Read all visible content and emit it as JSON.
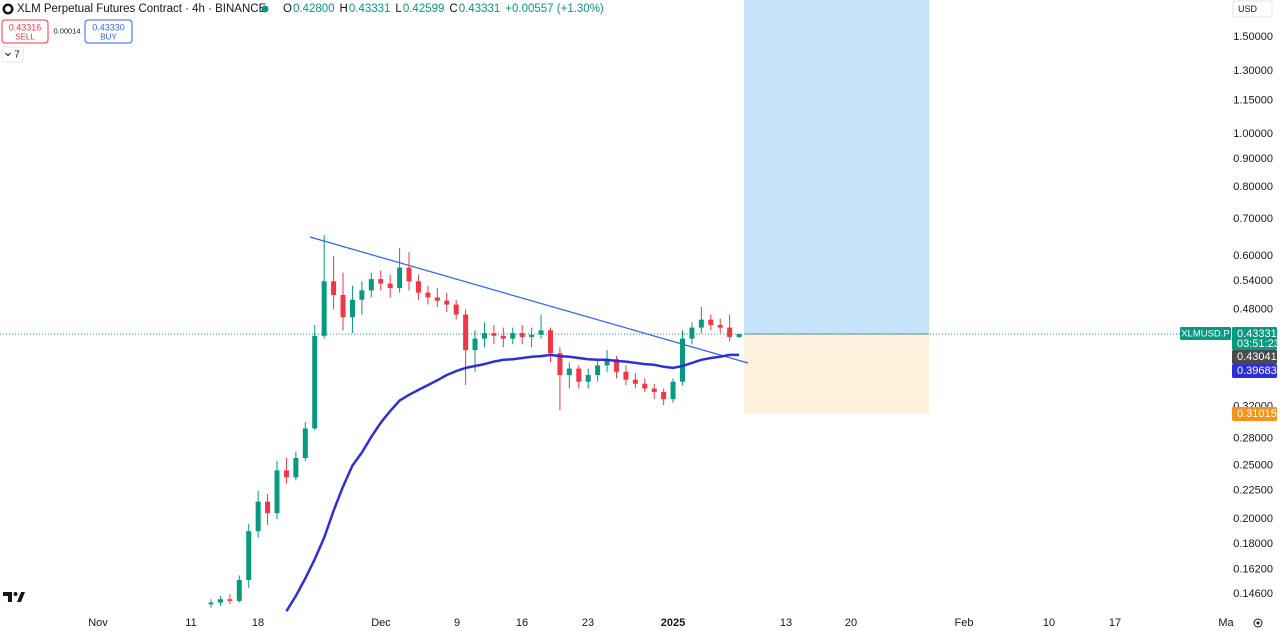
{
  "header": {
    "title": "XLM Perpetual Futures Contract · 4h · BINANCE",
    "ohlc": [
      {
        "key": "O",
        "value": "0.42800"
      },
      {
        "key": "H",
        "value": "0.43331"
      },
      {
        "key": "L",
        "value": "0.42599"
      },
      {
        "key": "C",
        "value": "0.43331"
      }
    ],
    "change": "+0.00557 (+1.30%)"
  },
  "trade": {
    "sell_price": "0.43316",
    "sell": "SELL",
    "spread": "0.00014",
    "buy_price": "0.43330",
    "buy": "BUY"
  },
  "indicators_count": "7",
  "currency": "USD",
  "chart_data": {
    "type": "candlestick",
    "log_scale": true,
    "up_color": "#089981",
    "down_color": "#f23645",
    "ylim": [
      0.135,
      1.75
    ],
    "yticks": [
      {
        "value": 1.5,
        "label": "1.50000"
      },
      {
        "value": 1.3,
        "label": "1.30000"
      },
      {
        "value": 1.15,
        "label": "1.15000"
      },
      {
        "value": 1.0,
        "label": "1.00000"
      },
      {
        "value": 0.9,
        "label": "0.90000"
      },
      {
        "value": 0.8,
        "label": "0.80000"
      },
      {
        "value": 0.7,
        "label": "0.70000"
      },
      {
        "value": 0.6,
        "label": "0.60000"
      },
      {
        "value": 0.54,
        "label": "0.54000"
      },
      {
        "value": 0.48,
        "label": "0.48000"
      },
      {
        "value": 0.32,
        "label": "0.32000"
      },
      {
        "value": 0.28,
        "label": "0.28000"
      },
      {
        "value": 0.25,
        "label": "0.25000"
      },
      {
        "value": 0.225,
        "label": "0.22500"
      },
      {
        "value": 0.2,
        "label": "0.20000"
      },
      {
        "value": 0.18,
        "label": "0.18000"
      },
      {
        "value": 0.162,
        "label": "0.16200"
      },
      {
        "value": 0.146,
        "label": "0.14600"
      }
    ],
    "xticks": [
      "Nov",
      "11",
      "18",
      "Dec",
      "9",
      "16",
      "23",
      "2025",
      "13",
      "20",
      "Feb",
      "10",
      "17",
      "Ma"
    ],
    "open": [
      0.14,
      0.141,
      0.143,
      0.142,
      0.155,
      0.19,
      0.215,
      0.205,
      0.245,
      0.238,
      0.258,
      0.292,
      0.43,
      0.54,
      0.51,
      0.465,
      0.5,
      0.52,
      0.545,
      0.535,
      0.525,
      0.572,
      0.54,
      0.515,
      0.505,
      0.498,
      0.49,
      0.47,
      0.405,
      0.425,
      0.435,
      0.43,
      0.425,
      0.435,
      0.428,
      0.432,
      0.44,
      0.4,
      0.365,
      0.375,
      0.355,
      0.365,
      0.38,
      0.39,
      0.37,
      0.358,
      0.352,
      0.345,
      0.34,
      0.33,
      0.355,
      0.425,
      0.445,
      0.46,
      0.45,
      0.445,
      0.428
    ],
    "high": [
      0.143,
      0.145,
      0.146,
      0.158,
      0.196,
      0.225,
      0.222,
      0.255,
      0.258,
      0.265,
      0.3,
      0.45,
      0.655,
      0.6,
      0.56,
      0.53,
      0.54,
      0.56,
      0.565,
      0.555,
      0.62,
      0.61,
      0.555,
      0.53,
      0.525,
      0.515,
      0.5,
      0.48,
      0.44,
      0.455,
      0.45,
      0.445,
      0.445,
      0.45,
      0.445,
      0.47,
      0.445,
      0.41,
      0.385,
      0.38,
      0.375,
      0.39,
      0.405,
      0.395,
      0.38,
      0.368,
      0.36,
      0.352,
      0.345,
      0.36,
      0.44,
      0.455,
      0.485,
      0.47,
      0.462,
      0.47,
      0.43331
    ],
    "low": [
      0.138,
      0.139,
      0.14,
      0.141,
      0.15,
      0.185,
      0.195,
      0.2,
      0.232,
      0.235,
      0.255,
      0.29,
      0.425,
      0.48,
      0.44,
      0.435,
      0.47,
      0.505,
      0.52,
      0.505,
      0.515,
      0.52,
      0.5,
      0.49,
      0.485,
      0.475,
      0.46,
      0.35,
      0.37,
      0.41,
      0.415,
      0.41,
      0.415,
      0.415,
      0.41,
      0.425,
      0.385,
      0.315,
      0.345,
      0.345,
      0.345,
      0.355,
      0.37,
      0.36,
      0.35,
      0.345,
      0.34,
      0.33,
      0.322,
      0.325,
      0.35,
      0.415,
      0.435,
      0.44,
      0.435,
      0.42,
      0.42599
    ],
    "close": [
      0.141,
      0.143,
      0.142,
      0.155,
      0.19,
      0.215,
      0.205,
      0.245,
      0.238,
      0.258,
      0.292,
      0.43,
      0.54,
      0.51,
      0.465,
      0.5,
      0.52,
      0.545,
      0.535,
      0.525,
      0.572,
      0.54,
      0.515,
      0.505,
      0.498,
      0.49,
      0.47,
      0.405,
      0.425,
      0.435,
      0.43,
      0.425,
      0.435,
      0.428,
      0.432,
      0.44,
      0.4,
      0.365,
      0.375,
      0.355,
      0.365,
      0.38,
      0.39,
      0.37,
      0.358,
      0.352,
      0.345,
      0.34,
      0.33,
      0.355,
      0.425,
      0.445,
      0.46,
      0.45,
      0.445,
      0.428,
      0.43331
    ],
    "ma": {
      "color": "#2f2fd8",
      "values": [
        null,
        null,
        null,
        null,
        null,
        null,
        null,
        null,
        0.136,
        0.145,
        0.156,
        0.169,
        0.185,
        0.207,
        0.229,
        0.25,
        0.264,
        0.282,
        0.299,
        0.314,
        0.328,
        0.336,
        0.343,
        0.35,
        0.357,
        0.365,
        0.371,
        0.376,
        0.379,
        0.382,
        0.386,
        0.389,
        0.39,
        0.392,
        0.394,
        0.395,
        0.397,
        0.395,
        0.394,
        0.392,
        0.39,
        0.389,
        0.389,
        0.387,
        0.386,
        0.384,
        0.382,
        0.381,
        0.378,
        0.376,
        0.379,
        0.384,
        0.389,
        0.392,
        0.394,
        0.397,
        0.397
      ]
    },
    "price_labels": [
      {
        "value": 0.43331,
        "color": "#089981",
        "tag": "XLMUSD.P",
        "countdown": "03:51:23"
      },
      {
        "value": 0.43041,
        "color": "#4a4a4a"
      },
      {
        "value": 0.39683,
        "color": "#2f2fd8"
      },
      {
        "value": 0.31015,
        "color": "#f7931a"
      }
    ]
  }
}
